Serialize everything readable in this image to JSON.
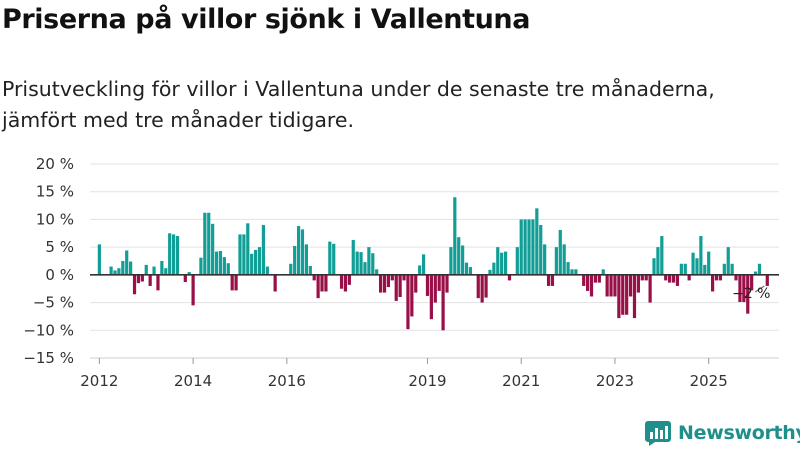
{
  "title": "Priserna på villor sjönk i Vallentuna",
  "subtitle": "Prisutveckling för villor i Vallentuna under de senaste tre månaderna, jämfört med tre månader tidigare.",
  "brand": {
    "name": "Newsworthy"
  },
  "colors": {
    "positive": "#119e96",
    "negative": "#990f47",
    "grid": "#e3e3e3",
    "axis": "#333333"
  },
  "chart_data": {
    "type": "bar",
    "title": "Priserna på villor sjönk i Vallentuna",
    "xlabel": "",
    "ylabel": "",
    "ylim": [
      -15,
      20
    ],
    "yticks": [
      20,
      15,
      10,
      5,
      0,
      -5,
      -10,
      -15
    ],
    "ytick_labels": [
      "20 %",
      "15 %",
      "10 %",
      "5 %",
      "0 %",
      "−5 %",
      "−10 %",
      "−15 %"
    ],
    "xlim": [
      2011.8,
      2026.5
    ],
    "xticks": [
      2012,
      2014,
      2016,
      2019,
      2021,
      2023,
      2025
    ],
    "xtick_labels": [
      "2012",
      "2014",
      "2016",
      "2019",
      "2021",
      "2023",
      "2025"
    ],
    "start": 2012.0,
    "step": 0.0833333,
    "values": [
      5.5,
      0,
      0,
      1.5,
      0.8,
      1.2,
      2.5,
      4.4,
      2.4,
      -3.5,
      -1.5,
      -1.2,
      1.8,
      -2,
      1.5,
      -2.8,
      2.5,
      1.2,
      7.5,
      7.3,
      7,
      0,
      -1.3,
      0.5,
      -5.5,
      0,
      3.1,
      11.2,
      11.2,
      9.2,
      4.2,
      4.3,
      3.2,
      2.1,
      -2.8,
      -2.8,
      7.3,
      7.3,
      9.3,
      3.8,
      4.5,
      5,
      9,
      1.5,
      0,
      -3,
      0,
      0,
      0,
      2,
      5.2,
      8.8,
      8.2,
      5.5,
      1.6,
      -1,
      -4.2,
      -3,
      -3,
      6,
      5.6,
      0,
      -2.5,
      -3,
      -1.8,
      6.3,
      4.2,
      4.1,
      2.3,
      5,
      3.9,
      1,
      -3.2,
      -3.2,
      -2.2,
      -1,
      -4.7,
      -4,
      -1,
      -9.8,
      -7.5,
      -3.2,
      1.7,
      3.7,
      -3.8,
      -8,
      -5,
      -2.9,
      -10,
      -3.2,
      5,
      14,
      6.8,
      5.3,
      2.2,
      1.4,
      0,
      -4.2,
      -5,
      -4.1,
      0.9,
      2.2,
      5,
      4,
      4.2,
      -1,
      0,
      5,
      10,
      10,
      10,
      10,
      12,
      9,
      5.5,
      -2,
      -2,
      5,
      8.1,
      5.5,
      2.3,
      1,
      1,
      0,
      -2,
      -2.9,
      -3.9,
      -1.4,
      -1.4,
      1,
      -3.9,
      -3.9,
      -3.9,
      -7.8,
      -7.2,
      -7.2,
      -3.9,
      -7.8,
      -3.2,
      -1,
      -1,
      -5,
      3,
      5,
      7,
      -1,
      -1.4,
      -1.4,
      -2,
      2,
      2,
      -1,
      4,
      3,
      7,
      1.8,
      4.2,
      -3,
      -1,
      -1,
      2,
      5,
      2,
      -1,
      -4.9,
      -4.9,
      -7,
      -2.8,
      0.6,
      2,
      0,
      -2
    ],
    "last_value_label": "−2 %"
  }
}
